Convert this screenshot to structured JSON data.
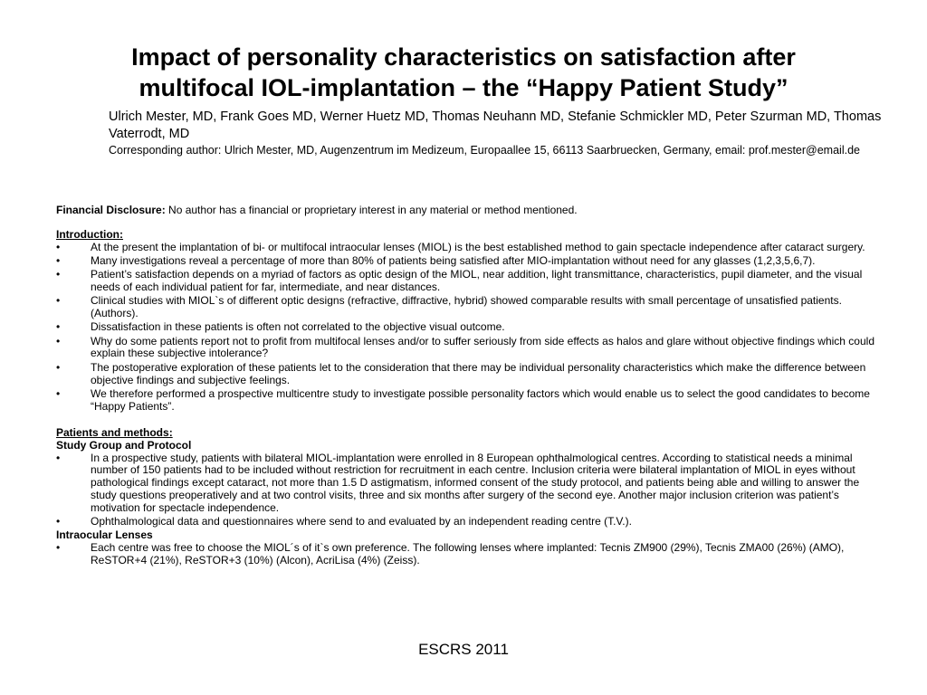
{
  "title": {
    "line1": "Impact of personality characteristics on satisfaction after",
    "line2": "multifocal IOL-implantation – the “Happy Patient Study”"
  },
  "authors": "Ulrich Mester, MD, Frank Goes MD, Werner Huetz MD, Thomas Neuhann MD, Stefanie Schmickler MD, Peter Szurman MD, Thomas Vaterrodt, MD",
  "corresponding": "Corresponding author: Ulrich Mester, MD, Augenzentrum im Medizeum, Europaallee 15, 66113 Saarbruecken, Germany, email: prof.mester@email.de",
  "disclosure": {
    "label": "Financial Disclosure:",
    "text": " No author has a financial or proprietary interest in any material or method mentioned."
  },
  "bullet_symbol": "•",
  "introduction": {
    "heading": "Introduction:",
    "items": [
      "At the present the implantation of bi- or multifocal intraocular lenses (MIOL) is the best established method to gain spectacle independence after cataract surgery.",
      "Many investigations reveal a percentage of more than 80% of patients being satisfied after MIO-implantation without need for any glasses (1,2,3,5,6,7).",
      "Patient’s satisfaction depends on a myriad of factors as optic design of the MIOL, near addition, light transmittance, characteristics, pupil diameter, and the visual needs of each individual patient for far, intermediate, and near distances.",
      "Clinical studies with MIOL`s of different optic designs (refractive, diffractive, hybrid) showed comparable results with small percentage of unsatisfied patients. (Authors).",
      "Dissatisfaction in these patients is often not correlated to the objective visual outcome.",
      "Why do some patients report not to profit from multifocal lenses and/or to suffer seriously from side effects as halos and glare without objective findings which could explain these subjective intolerance?",
      "The postoperative exploration of these patients let to the consideration that there may be individual personality characteristics which make the difference between objective findings and subjective feelings.",
      "We therefore performed a prospective multicentre study to investigate possible personality factors which would enable us to select the good candidates to become “Happy Patients”."
    ]
  },
  "patients_methods": {
    "heading": "Patients and methods:",
    "study_group": {
      "heading": " Study Group and Protocol",
      "items": [
        "In a prospective study, patients with bilateral MIOL-implantation were enrolled in 8 European ophthalmological centres. According to statistical needs a minimal number of 150 patients had to be included without restriction for recruitment in each centre. Inclusion criteria were bilateral implantation of MIOL in eyes without pathological findings except cataract, not more than 1.5 D astigmatism, informed consent of the study protocol, and patients being able and willing to answer the study questions preoperatively and  at two control visits, three and six months after surgery of the second eye. Another major inclusion criterion was patient’s motivation for spectacle independence.",
        "Ophthalmological data and questionnaires where send to and evaluated by an independent reading centre (T.V.)."
      ]
    },
    "lenses": {
      "heading": "Intraocular Lenses",
      "items": [
        "Each centre was free to choose the MIOL´s of  it`s own preference. The following lenses where implanted: Tecnis ZM900 (29%), Tecnis ZMA00 (26%) (AMO), ReSTOR+4 (21%), ReSTOR+3 (10%) (Alcon), AcriLisa (4%) (Zeiss)."
      ]
    }
  },
  "footer": "ESCRS 2011"
}
